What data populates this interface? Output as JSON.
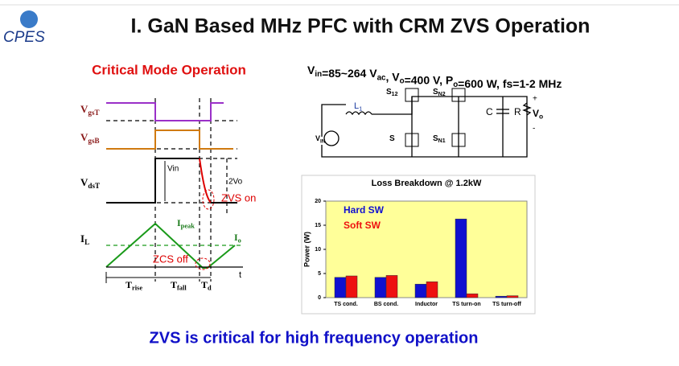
{
  "header": {
    "logo": "CPES",
    "title": "I. GaN Based MHz PFC with CRM ZVS Operation"
  },
  "left": {
    "title": "Critical Mode Operation",
    "signals": [
      {
        "main": "V",
        "sub": "gsT"
      },
      {
        "main": "V",
        "sub": "gsB"
      },
      {
        "main": "V",
        "sub": "dsT"
      },
      {
        "main": "I",
        "sub": "L"
      }
    ],
    "labels": [
      "Vin",
      "2Vo",
      "ZVS on",
      "ZCS off",
      "t"
    ],
    "ipeak": {
      "main": "I",
      "sub": "peak"
    },
    "io": {
      "main": "I",
      "sub": "o"
    },
    "times": [
      {
        "main": "T",
        "sub": "rise"
      },
      {
        "main": "T",
        "sub": "fall"
      },
      {
        "main": "T",
        "sub": "d"
      }
    ]
  },
  "right": {
    "spec": [
      {
        "main": "V",
        "sub": "in"
      },
      "=85~264 V",
      {
        "main": "",
        "sub": "ac"
      },
      ", V",
      {
        "main": "",
        "sub": "o"
      },
      "=400 V, P",
      {
        "main": "",
        "sub": "o"
      },
      "=600 W, fs=1-2 MHz"
    ],
    "circuit": {
      "inductor": {
        "main": "L",
        "sub": "1"
      },
      "source": {
        "main": "V",
        "sub": "IN"
      },
      "switches": [
        {
          "main": "S",
          "sub": "12"
        },
        {
          "main": "S",
          "sub": "N2"
        },
        "S",
        {
          "main": "S",
          "sub": "N1"
        }
      ],
      "cap": "C",
      "res": "R",
      "out": {
        "main": "V",
        "sub": "o"
      },
      "plus": "+",
      "minus": "-"
    }
  },
  "chart_data": {
    "type": "bar",
    "title": "Loss Breakdown @ 1.2kW",
    "y_label": "Power (W)",
    "categories": [
      "TS cond.",
      "BS cond.",
      "Inductor",
      "TS turn-on",
      "TS turn-off"
    ],
    "series": [
      {
        "name": "Hard SW",
        "color": "#1010d0",
        "values": [
          4.2,
          4.2,
          2.8,
          16.3,
          0.3
        ]
      },
      {
        "name": "Soft SW",
        "color": "#ee1010",
        "values": [
          4.5,
          4.6,
          3.3,
          0.8,
          0.4
        ]
      }
    ],
    "ylim": [
      0,
      20
    ],
    "yticks": [
      0,
      5,
      10,
      15,
      20
    ],
    "plot_color": "#ffff99"
  },
  "footer": "ZVS is critical for high frequency operation"
}
